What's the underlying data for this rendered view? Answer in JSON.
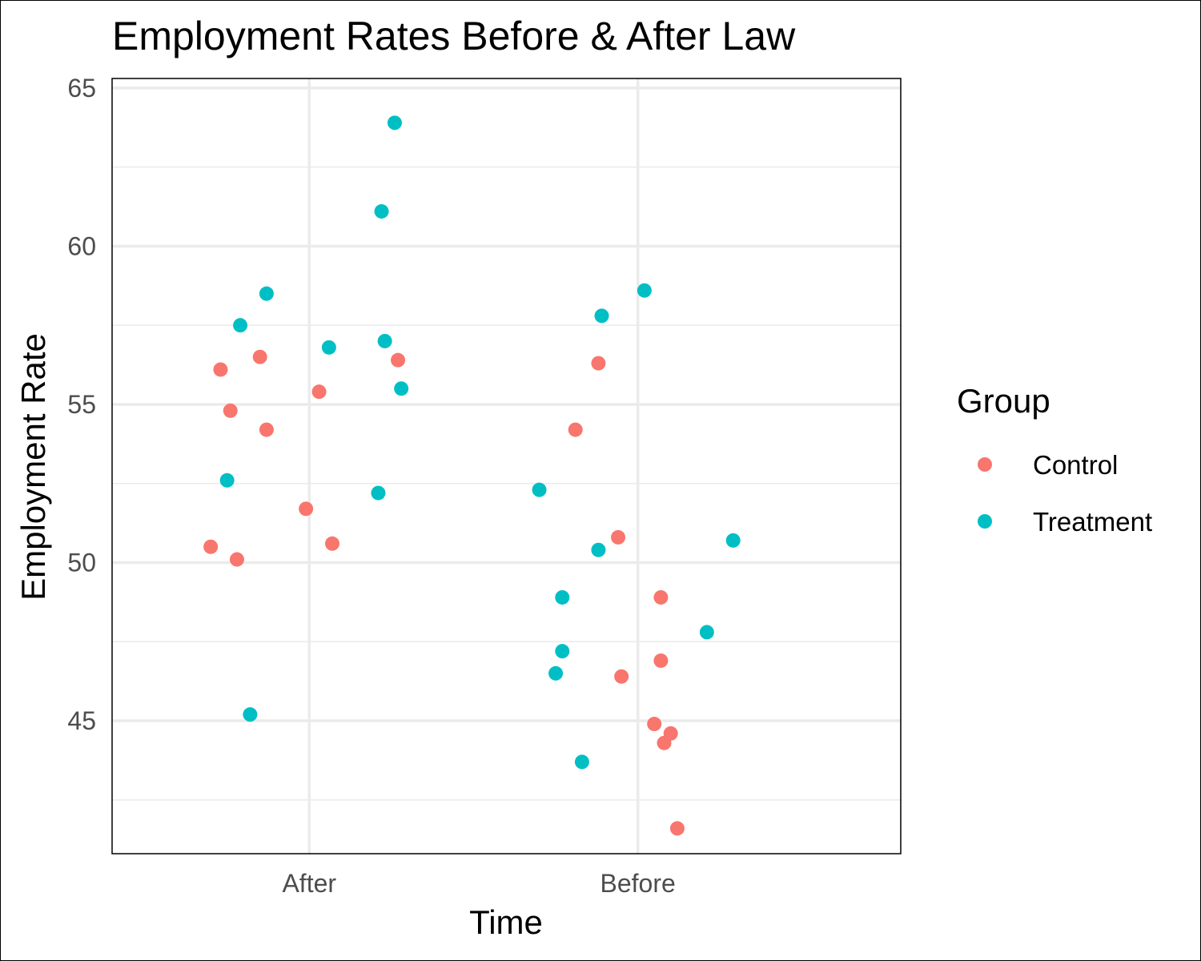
{
  "chart_data": {
    "type": "scatter",
    "title": "Employment Rates Before & After Law",
    "xlabel": "Time",
    "ylabel": "Employment Rate",
    "categories": [
      "After",
      "Before"
    ],
    "ylim": [
      40.8,
      65.3
    ],
    "yticks": [
      45,
      50,
      55,
      60,
      65
    ],
    "grid": true,
    "legend": {
      "title": "Group",
      "position": "right",
      "entries": [
        "Control",
        "Treatment"
      ]
    },
    "colors": {
      "Control": "#F8766D",
      "Treatment": "#00BFC4"
    },
    "series": [
      {
        "name": "Control",
        "points": [
          {
            "x": "After",
            "jitter": -0.3,
            "y": 50.5
          },
          {
            "x": "After",
            "jitter": -0.27,
            "y": 56.1
          },
          {
            "x": "After",
            "jitter": -0.24,
            "y": 54.8
          },
          {
            "x": "After",
            "jitter": -0.22,
            "y": 50.1
          },
          {
            "x": "After",
            "jitter": -0.15,
            "y": 56.5
          },
          {
            "x": "After",
            "jitter": -0.13,
            "y": 54.2
          },
          {
            "x": "After",
            "jitter": -0.01,
            "y": 51.7
          },
          {
            "x": "After",
            "jitter": 0.03,
            "y": 55.4
          },
          {
            "x": "After",
            "jitter": 0.07,
            "y": 50.6
          },
          {
            "x": "After",
            "jitter": 0.27,
            "y": 56.4
          },
          {
            "x": "Before",
            "jitter": -0.19,
            "y": 54.2
          },
          {
            "x": "Before",
            "jitter": -0.12,
            "y": 56.3
          },
          {
            "x": "Before",
            "jitter": -0.06,
            "y": 50.8
          },
          {
            "x": "Before",
            "jitter": -0.05,
            "y": 46.4
          },
          {
            "x": "Before",
            "jitter": 0.05,
            "y": 44.9
          },
          {
            "x": "Before",
            "jitter": 0.07,
            "y": 46.9
          },
          {
            "x": "Before",
            "jitter": 0.07,
            "y": 48.9
          },
          {
            "x": "Before",
            "jitter": 0.08,
            "y": 44.3
          },
          {
            "x": "Before",
            "jitter": 0.1,
            "y": 44.6
          },
          {
            "x": "Before",
            "jitter": 0.12,
            "y": 41.6
          }
        ]
      },
      {
        "name": "Treatment",
        "points": [
          {
            "x": "After",
            "jitter": -0.25,
            "y": 52.6
          },
          {
            "x": "After",
            "jitter": -0.21,
            "y": 57.5
          },
          {
            "x": "After",
            "jitter": -0.18,
            "y": 45.2
          },
          {
            "x": "After",
            "jitter": -0.13,
            "y": 58.5
          },
          {
            "x": "After",
            "jitter": 0.06,
            "y": 56.8
          },
          {
            "x": "After",
            "jitter": 0.21,
            "y": 52.2
          },
          {
            "x": "After",
            "jitter": 0.22,
            "y": 61.1
          },
          {
            "x": "After",
            "jitter": 0.23,
            "y": 57.0
          },
          {
            "x": "After",
            "jitter": 0.26,
            "y": 63.9
          },
          {
            "x": "After",
            "jitter": 0.28,
            "y": 55.5
          },
          {
            "x": "Before",
            "jitter": -0.3,
            "y": 52.3
          },
          {
            "x": "Before",
            "jitter": -0.25,
            "y": 46.5
          },
          {
            "x": "Before",
            "jitter": -0.23,
            "y": 48.9
          },
          {
            "x": "Before",
            "jitter": -0.23,
            "y": 47.2
          },
          {
            "x": "Before",
            "jitter": -0.17,
            "y": 43.7
          },
          {
            "x": "Before",
            "jitter": -0.12,
            "y": 50.4
          },
          {
            "x": "Before",
            "jitter": -0.11,
            "y": 57.8
          },
          {
            "x": "Before",
            "jitter": 0.02,
            "y": 58.6
          },
          {
            "x": "Before",
            "jitter": 0.21,
            "y": 47.8
          },
          {
            "x": "Before",
            "jitter": 0.29,
            "y": 50.7
          }
        ]
      }
    ]
  }
}
